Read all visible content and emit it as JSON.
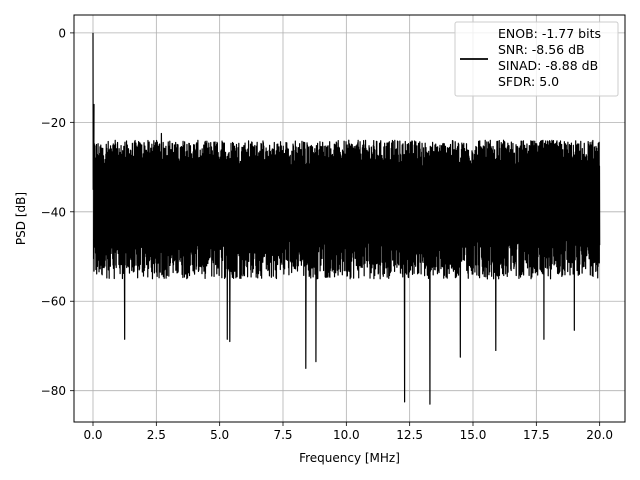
{
  "chart_data": {
    "type": "line",
    "xlabel": "Frequency [MHz]",
    "ylabel": "PSD [dB]",
    "xlim": [
      -0.75,
      21.0
    ],
    "ylim": [
      -87,
      4
    ],
    "xticks": [
      0.0,
      2.5,
      5.0,
      7.5,
      10.0,
      12.5,
      15.0,
      17.5,
      20.0
    ],
    "xtick_labels": [
      "0.0",
      "2.5",
      "5.0",
      "7.5",
      "10.0",
      "12.5",
      "15.0",
      "17.5",
      "20.0"
    ],
    "yticks": [
      0,
      -20,
      -40,
      -60,
      -80
    ],
    "ytick_labels": [
      "0",
      "−20",
      "−40",
      "−60",
      "−80"
    ],
    "grid": true,
    "legend_placement": "top-right",
    "series": [
      {
        "name": "ENOB: -1.77 bits\nSNR: -8.56 dB\nSINAD: -8.88 dB\nSFDR: 5.0",
        "color": "#000000",
        "x_range": [
          0.0,
          20.0
        ],
        "noise_band_upper_db": -27,
        "noise_band_lower_db": -50,
        "peaks": [
          {
            "x": 0.0,
            "y": 0.0
          },
          {
            "x": 0.04,
            "y": -16.0
          },
          {
            "x": 2.7,
            "y": -22.5
          }
        ],
        "dips": [
          {
            "x": 1.25,
            "y": -68.5
          },
          {
            "x": 5.3,
            "y": -68.5
          },
          {
            "x": 5.4,
            "y": -69.0
          },
          {
            "x": 8.4,
            "y": -75.0
          },
          {
            "x": 8.8,
            "y": -73.5
          },
          {
            "x": 12.3,
            "y": -82.5
          },
          {
            "x": 13.3,
            "y": -83.0
          },
          {
            "x": 14.5,
            "y": -72.5
          },
          {
            "x": 15.9,
            "y": -71.0
          },
          {
            "x": 17.8,
            "y": -68.5
          },
          {
            "x": 19.0,
            "y": -66.5
          }
        ]
      }
    ]
  }
}
